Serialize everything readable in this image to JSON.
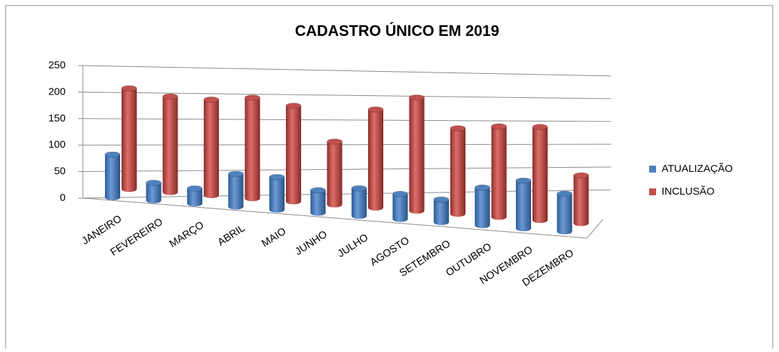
{
  "chart_data": {
    "type": "bar3d",
    "title": "CADASTRO ÚNICO EM 2019",
    "categories": [
      "JANEIRO",
      "FEVEREIRO",
      "MARÇO",
      "ABRIL",
      "MAIO",
      "JUNHO",
      "JULHO",
      "AGOSTO",
      "SETEMBRO",
      "OUTUBRO",
      "NOVEMBRO",
      "DEZEMBRO"
    ],
    "series": [
      {
        "name": "ATUALIZAÇÃO",
        "color": "#4f81bd",
        "values": [
          85,
          35,
          30,
          65,
          65,
          45,
          55,
          50,
          45,
          75,
          95,
          75
        ]
      },
      {
        "name": "INCLUSÃO",
        "color": "#c0504d",
        "values": [
          200,
          190,
          190,
          200,
          190,
          125,
          195,
          225,
          170,
          180,
          185,
          95
        ]
      }
    ],
    "ylim": [
      0,
      250
    ],
    "yticks": [
      0,
      50,
      100,
      150,
      200,
      250
    ],
    "grid": true,
    "legend": "right"
  }
}
